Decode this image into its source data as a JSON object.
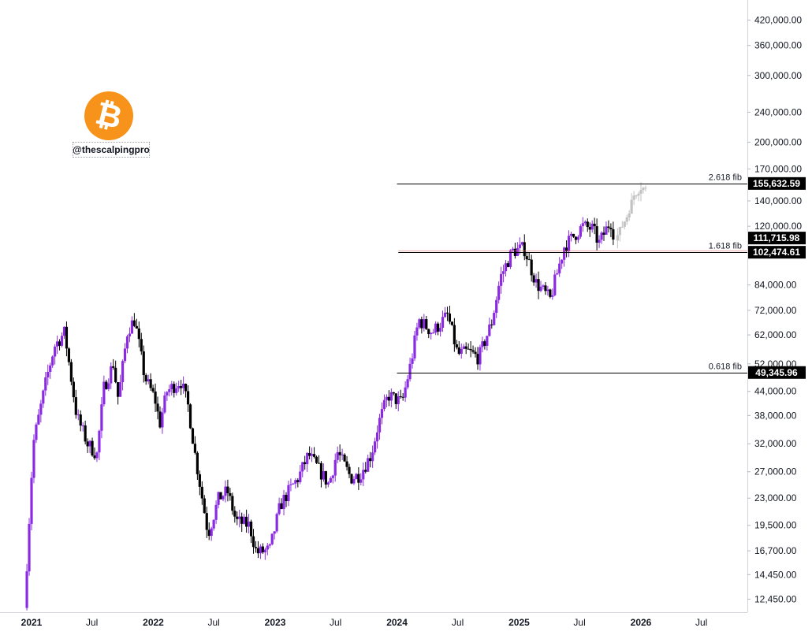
{
  "watermark": {
    "handle": "@thescalpingpro",
    "logo_glyph": "₿",
    "logo_color": "#f7931a",
    "logo_icon": "bitcoin-icon"
  },
  "colors": {
    "up": "#8a2be2",
    "down": "#000000",
    "projection": "#c2c2c2",
    "fib_line": "#000000",
    "current_line": "#e57373",
    "tag_bg": "#000000"
  },
  "chart_data": {
    "type": "candlestick",
    "instrument": "BTC",
    "y_scale": "log",
    "ylim": [
      11500,
      470000
    ],
    "y_ticks": [
      "420,000.00",
      "360,000.00",
      "300,000.00",
      "240,000.00",
      "200,000.00",
      "170,000.00",
      "140,000.00",
      "120,000.00",
      "84,000.00",
      "72,000.00",
      "62,000.00",
      "52,000.00",
      "44,000.00",
      "38,000.00",
      "32,000.00",
      "27,000.00",
      "23,000.00",
      "19,500.00",
      "16,700.00",
      "14,450.00",
      "12,450.00"
    ],
    "x_ticks": [
      {
        "label": "2021",
        "date": "2021-01-01"
      },
      {
        "label": "Jul",
        "date": "2021-07-01"
      },
      {
        "label": "2022",
        "date": "2022-01-01"
      },
      {
        "label": "Jul",
        "date": "2022-07-01"
      },
      {
        "label": "2023",
        "date": "2023-01-01"
      },
      {
        "label": "Jul",
        "date": "2023-07-01"
      },
      {
        "label": "2024",
        "date": "2024-01-01"
      },
      {
        "label": "Jul",
        "date": "2024-07-01"
      },
      {
        "label": "2025",
        "date": "2025-01-01"
      },
      {
        "label": "Jul",
        "date": "2025-07-01"
      },
      {
        "label": "2026",
        "date": "2026-01-01"
      },
      {
        "label": "Jul",
        "date": "2026-07-01"
      }
    ],
    "price_path": [
      [
        "2020-12-15",
        11800
      ],
      [
        "2021-01-10",
        32000
      ],
      [
        "2021-02-20",
        48000
      ],
      [
        "2021-03-15",
        58000
      ],
      [
        "2021-04-14",
        63000
      ],
      [
        "2021-05-20",
        38000
      ],
      [
        "2021-06-22",
        32000
      ],
      [
        "2021-07-20",
        30000
      ],
      [
        "2021-08-10",
        45000
      ],
      [
        "2021-09-07",
        52000
      ],
      [
        "2021-09-22",
        42000
      ],
      [
        "2021-10-20",
        64000
      ],
      [
        "2021-11-10",
        68000
      ],
      [
        "2021-12-10",
        48000
      ],
      [
        "2022-01-10",
        42000
      ],
      [
        "2022-01-24",
        36000
      ],
      [
        "2022-02-15",
        44000
      ],
      [
        "2022-03-28",
        47000
      ],
      [
        "2022-04-20",
        40000
      ],
      [
        "2022-05-10",
        30000
      ],
      [
        "2022-06-18",
        18500
      ],
      [
        "2022-07-20",
        23000
      ],
      [
        "2022-08-15",
        24000
      ],
      [
        "2022-09-10",
        20000
      ],
      [
        "2022-10-20",
        19500
      ],
      [
        "2022-11-10",
        16500
      ],
      [
        "2022-12-20",
        16800
      ],
      [
        "2023-01-20",
        22000
      ],
      [
        "2023-02-15",
        24000
      ],
      [
        "2023-03-15",
        26000
      ],
      [
        "2023-04-15",
        30000
      ],
      [
        "2023-06-15",
        25000
      ],
      [
        "2023-07-10",
        30500
      ],
      [
        "2023-08-20",
        26000
      ],
      [
        "2023-09-15",
        26500
      ],
      [
        "2023-10-20",
        30000
      ],
      [
        "2023-11-10",
        36000
      ],
      [
        "2023-12-10",
        43000
      ],
      [
        "2024-01-20",
        41000
      ],
      [
        "2024-02-15",
        52000
      ],
      [
        "2024-03-10",
        68000
      ],
      [
        "2024-04-20",
        63000
      ],
      [
        "2024-06-05",
        70000
      ],
      [
        "2024-07-05",
        55000
      ],
      [
        "2024-08-05",
        56000
      ],
      [
        "2024-09-06",
        54000
      ],
      [
        "2024-10-15",
        67000
      ],
      [
        "2024-11-10",
        88000
      ],
      [
        "2024-12-15",
        103000
      ],
      [
        "2025-01-20",
        105000
      ],
      [
        "2025-02-25",
        85000
      ],
      [
        "2025-04-08",
        77000
      ],
      [
        "2025-05-20",
        106000
      ],
      [
        "2025-07-14",
        120000
      ],
      [
        "2025-08-14",
        118000
      ],
      [
        "2025-09-01",
        108000
      ],
      [
        "2025-10-06",
        124000
      ],
      [
        "2025-10-20",
        110000
      ]
    ],
    "projection_path": [
      [
        "2025-10-20",
        110000
      ],
      [
        "2025-11-05",
        118000
      ],
      [
        "2025-11-25",
        128000
      ],
      [
        "2025-12-15",
        145000
      ],
      [
        "2026-01-05",
        152000
      ],
      [
        "2026-01-20",
        150000
      ]
    ],
    "annotations": [
      {
        "label": "2.618 fib",
        "price_tag": "155,632.59",
        "value": 155632.59,
        "start": "2024-01-01"
      },
      {
        "label": "1.618 fib",
        "price_tag": "102,474.61",
        "value": 102474.61,
        "start": "2024-01-05"
      },
      {
        "label": "0.618 fib",
        "price_tag": "49,345.96",
        "value": 49345.96,
        "start": "2024-01-01"
      }
    ],
    "current_price": {
      "price_tag": "111,715.98",
      "value": 111715.98
    }
  }
}
